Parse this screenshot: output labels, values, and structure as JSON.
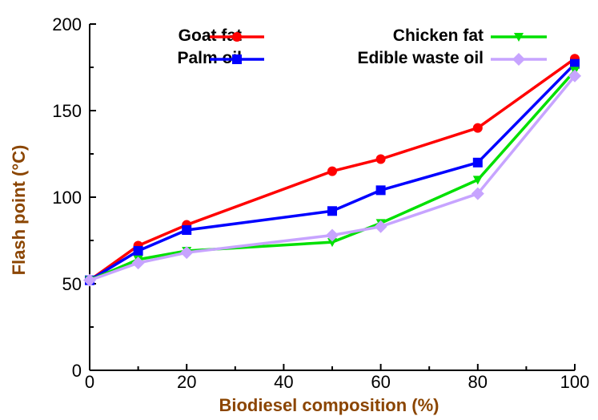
{
  "chart_data": {
    "type": "line",
    "title": "",
    "xlabel": "Biodiesel composition (%)",
    "ylabel": "Flash point (°C)",
    "xlim": [
      0,
      100
    ],
    "ylim": [
      0,
      200
    ],
    "x_ticks": [
      "0",
      "20",
      "40",
      "60",
      "80",
      "100"
    ],
    "y_ticks": [
      "0",
      "50",
      "100",
      "150",
      "200"
    ],
    "grid": false,
    "legend_position": "top",
    "x": [
      0,
      10,
      20,
      50,
      60,
      80,
      100
    ],
    "series": [
      {
        "name": "Goat fat",
        "color": "#ff0000",
        "marker": "circle",
        "values": [
          52,
          72,
          84,
          115,
          122,
          140,
          180
        ]
      },
      {
        "name": "Palm oil",
        "color": "#0000ff",
        "marker": "square",
        "values": [
          52,
          69,
          81,
          92,
          104,
          120,
          177
        ]
      },
      {
        "name": "Chicken fat",
        "color": "#00e000",
        "marker": "triangle-down",
        "values": [
          52,
          64,
          69,
          74,
          85,
          110,
          173
        ]
      },
      {
        "name": "Edible waste oil",
        "color": "#c7a4ff",
        "marker": "diamond",
        "values": [
          52,
          62,
          68,
          78,
          83,
          102,
          170
        ]
      }
    ]
  }
}
